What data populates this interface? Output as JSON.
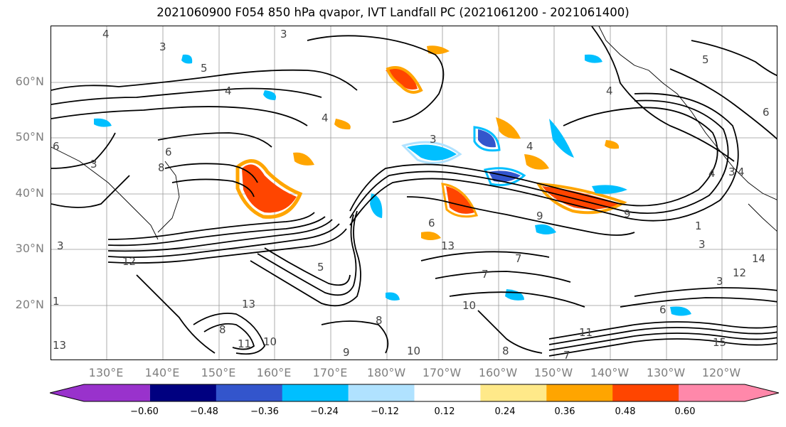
{
  "title": "2021060900 F054 850 hPa qvapor, IVT Landfall PC (2021061200 - 2021061400)",
  "map": {
    "lat_labels": [
      "60°N",
      "50°N",
      "40°N",
      "30°N",
      "20°N"
    ],
    "lon_labels": [
      "130°E",
      "140°E",
      "150°E",
      "160°E",
      "170°E",
      "180°W",
      "170°W",
      "160°W",
      "150°W",
      "140°W",
      "130°W",
      "120°W"
    ],
    "contour_labels": [
      "4",
      "3",
      "5",
      "4",
      "6",
      "4",
      "5",
      "3",
      "6",
      "6",
      "4",
      "9",
      "4",
      "3",
      "4",
      "3",
      "4",
      "8",
      "3",
      "3",
      "9",
      "1",
      "3",
      "6",
      "12",
      "7",
      "13",
      "10",
      "1",
      "11",
      "8",
      "10",
      "5",
      "8",
      "7",
      "11",
      "8",
      "3",
      "6",
      "12",
      "15",
      "9",
      "13",
      "14",
      "13",
      "10",
      "7"
    ]
  },
  "colorbar": {
    "tick_labels": [
      "−0.60",
      "−0.48",
      "−0.36",
      "−0.24",
      "−0.12",
      "0.12",
      "0.24",
      "0.36",
      "0.48",
      "0.60"
    ],
    "colors": [
      "#9932CC",
      "#000080",
      "#3355CC",
      "#00BFFF",
      "#B0E2FF",
      "#FFFFFF",
      "#FFE989",
      "#FFA500",
      "#FF4500",
      "#B22222",
      "#FF88AA"
    ]
  }
}
